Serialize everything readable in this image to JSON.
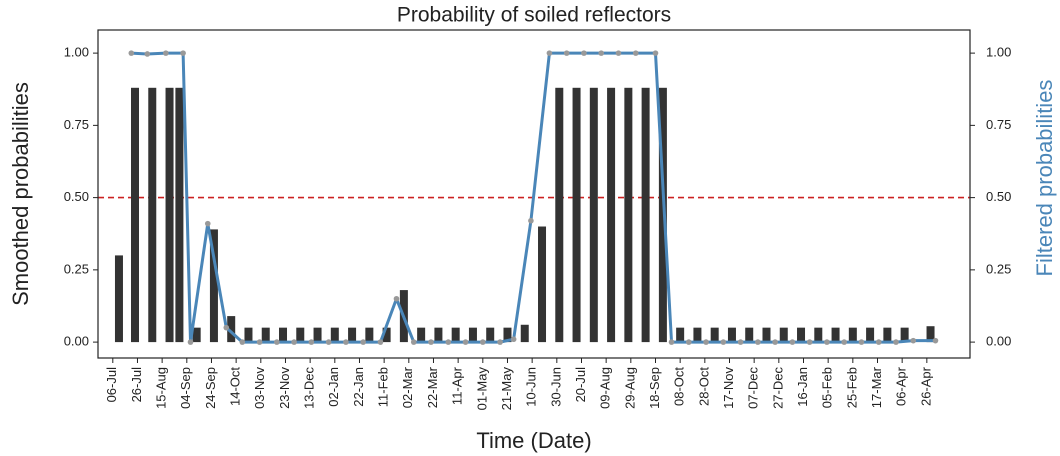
{
  "chart_data": {
    "type": "bar-line",
    "title": "Probability of soiled reflectors",
    "x_label": "Time (Date)",
    "y_label": "Smoothed probabilities",
    "y2_label": "Filtered probabilities",
    "xlim": [
      -12,
      695
    ],
    "xticks": [
      {
        "value": 0,
        "label": "06-Jul"
      },
      {
        "value": 20,
        "label": "26-Jul"
      },
      {
        "value": 40,
        "label": "15-Aug"
      },
      {
        "value": 60,
        "label": "04-Sep"
      },
      {
        "value": 80,
        "label": "24-Sep"
      },
      {
        "value": 100,
        "label": "14-Oct"
      },
      {
        "value": 120,
        "label": "03-Nov"
      },
      {
        "value": 140,
        "label": "23-Nov"
      },
      {
        "value": 160,
        "label": "13-Dec"
      },
      {
        "value": 180,
        "label": "02-Jan"
      },
      {
        "value": 200,
        "label": "22-Jan"
      },
      {
        "value": 220,
        "label": "11-Feb"
      },
      {
        "value": 240,
        "label": "02-Mar"
      },
      {
        "value": 260,
        "label": "22-Mar"
      },
      {
        "value": 280,
        "label": "11-Apr"
      },
      {
        "value": 300,
        "label": "01-May"
      },
      {
        "value": 320,
        "label": "21-May"
      },
      {
        "value": 340,
        "label": "10-Jun"
      },
      {
        "value": 360,
        "label": "30-Jun"
      },
      {
        "value": 380,
        "label": "20-Jul"
      },
      {
        "value": 400,
        "label": "09-Aug"
      },
      {
        "value": 420,
        "label": "29-Aug"
      },
      {
        "value": 440,
        "label": "18-Sep"
      },
      {
        "value": 460,
        "label": "08-Oct"
      },
      {
        "value": 480,
        "label": "28-Oct"
      },
      {
        "value": 500,
        "label": "17-Nov"
      },
      {
        "value": 520,
        "label": "07-Dec"
      },
      {
        "value": 540,
        "label": "27-Dec"
      },
      {
        "value": 560,
        "label": "16-Jan"
      },
      {
        "value": 580,
        "label": "05-Feb"
      },
      {
        "value": 600,
        "label": "25-Feb"
      },
      {
        "value": 620,
        "label": "17-Mar"
      },
      {
        "value": 640,
        "label": "06-Apr"
      },
      {
        "value": 660,
        "label": "26-Apr"
      }
    ],
    "ylim": [
      -0.055,
      1.08
    ],
    "yticks": [
      {
        "value": 0,
        "label": "0.00"
      },
      {
        "value": 0.25,
        "label": "0.25"
      },
      {
        "value": 0.5,
        "label": "0.50"
      },
      {
        "value": 0.75,
        "label": "0.75"
      },
      {
        "value": 1,
        "label": "1.00"
      }
    ],
    "y2lim": [
      -0.055,
      1.08
    ],
    "y2ticks": [
      {
        "value": 0,
        "label": "0.00"
      },
      {
        "value": 0.25,
        "label": "0.25"
      },
      {
        "value": 0.5,
        "label": "0.50"
      },
      {
        "value": 0.75,
        "label": "0.75"
      },
      {
        "value": 1,
        "label": "1.00"
      }
    ],
    "threshold": 0.5,
    "threshold_color": "#cc2222",
    "series": [
      {
        "type": "bar",
        "color": "#333333",
        "x": [
          5,
          18,
          32,
          46,
          54,
          68,
          82,
          96,
          110,
          124,
          138,
          152,
          166,
          180,
          194,
          208,
          222,
          236,
          250,
          264,
          278,
          292,
          306,
          320,
          334,
          348,
          362,
          376,
          390,
          404,
          418,
          432,
          446,
          460,
          474,
          488,
          502,
          516,
          530,
          544,
          558,
          572,
          586,
          600,
          614,
          628,
          642,
          663
        ],
        "values": [
          0.3,
          0.88,
          0.88,
          0.88,
          0.88,
          0.05,
          0.39,
          0.09,
          0.05,
          0.05,
          0.05,
          0.05,
          0.05,
          0.05,
          0.05,
          0.05,
          0.05,
          0.18,
          0.05,
          0.05,
          0.05,
          0.05,
          0.05,
          0.05,
          0.06,
          0.4,
          0.88,
          0.88,
          0.88,
          0.88,
          0.88,
          0.88,
          0.88,
          0.05,
          0.05,
          0.05,
          0.05,
          0.05,
          0.05,
          0.05,
          0.05,
          0.05,
          0.05,
          0.05,
          0.05,
          0.05,
          0.05,
          0.055
        ]
      },
      {
        "type": "line",
        "axis": "y2",
        "color": "#4a86b8",
        "marker_color": "#999999",
        "x": [
          15,
          28,
          43,
          57,
          63,
          77,
          92,
          105,
          119,
          133,
          147,
          161,
          175,
          189,
          203,
          217,
          230,
          244,
          258,
          272,
          286,
          300,
          314,
          325,
          339,
          354,
          368,
          382,
          396,
          410,
          424,
          440,
          453,
          467,
          481,
          495,
          509,
          523,
          537,
          551,
          565,
          579,
          593,
          607,
          621,
          635,
          649,
          667
        ],
        "values": [
          1,
          0.997,
          1,
          1,
          0,
          0.41,
          0.05,
          0,
          0,
          0,
          0,
          0,
          0,
          0,
          0,
          0,
          0.15,
          0,
          0,
          0,
          0,
          0,
          0,
          0.01,
          0.42,
          1,
          1,
          1,
          1,
          1,
          1,
          1,
          0,
          0,
          0,
          0,
          0,
          0,
          0,
          0,
          0,
          0,
          0,
          0,
          0,
          0,
          0.005,
          0.005
        ]
      }
    ]
  }
}
